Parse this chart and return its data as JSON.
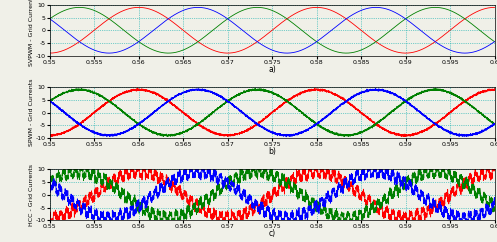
{
  "xlim": [
    0.55,
    0.6
  ],
  "ylim": [
    -10,
    10
  ],
  "yticks": [
    -10,
    -5,
    0,
    5,
    10
  ],
  "xticks": [
    0.55,
    0.555,
    0.56,
    0.565,
    0.57,
    0.575,
    0.58,
    0.585,
    0.59,
    0.595,
    0.6
  ],
  "xtick_labels": [
    "0.55",
    "0.555",
    "0.56",
    "0.565",
    "0.57",
    "0.575",
    "0.58",
    "0.585",
    "0.59",
    "0.595",
    "0.6"
  ],
  "ylabel_top": "SVPWM - Grid Currents",
  "ylabel_mid": "SPWM - Grid Currents",
  "ylabel_bot": "HCC - Grid Currents",
  "xlabel_top": "a)",
  "xlabel_mid": "b)",
  "xlabel_bot": "c)",
  "amplitude": 9.0,
  "frequency": 50,
  "color_r": "#ff0000",
  "color_g": "#008000",
  "color_b": "#0000ff",
  "grid_color": "#00aaaa",
  "grid_linestyle": ":",
  "bg_color": "#f0f0e8",
  "fig_width": 4.97,
  "fig_height": 2.42,
  "dpi": 100,
  "tick_fontsize": 4.5,
  "label_fontsize": 4.5,
  "phases_deg": [
    90,
    210,
    330
  ],
  "svpwm_noise": 0.0,
  "spwm_noise": 0.18,
  "hcc_noise": 0.55,
  "hcc_ripple_amp": 1.2,
  "hcc_ripple_freq": 1500
}
